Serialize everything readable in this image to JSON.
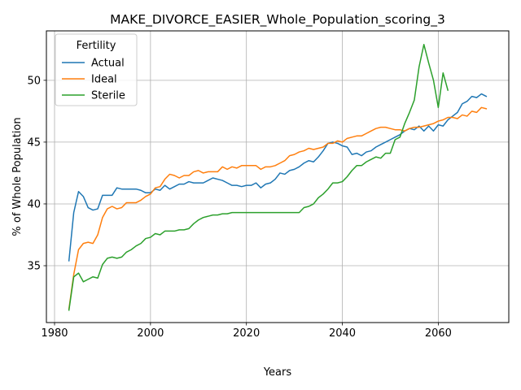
{
  "chart_data": {
    "type": "line",
    "title": "MAKE_DIVORCE_EASIER_Whole_Population_scoring_3",
    "xlabel": "Years",
    "ylabel": "% of Whole Population",
    "xlim": [
      1978.3,
      2074.7
    ],
    "ylim": [
      30.4,
      54.0
    ],
    "xticks": [
      1980,
      2000,
      2020,
      2040,
      2060
    ],
    "yticks": [
      35,
      40,
      45,
      50
    ],
    "grid": true,
    "legend": {
      "title": "Fertility",
      "position": "top-left"
    },
    "series": [
      {
        "name": "Actual",
        "color": "#1f77b4",
        "x": [
          1983,
          1984,
          1985,
          1986,
          1987,
          1988,
          1989,
          1990,
          1991,
          1992,
          1993,
          1994,
          1995,
          1996,
          1997,
          1998,
          1999,
          2000,
          2001,
          2002,
          2003,
          2004,
          2005,
          2006,
          2007,
          2008,
          2009,
          2010,
          2011,
          2012,
          2013,
          2014,
          2015,
          2016,
          2017,
          2018,
          2019,
          2020,
          2021,
          2022,
          2023,
          2024,
          2025,
          2026,
          2027,
          2028,
          2029,
          2030,
          2031,
          2032,
          2033,
          2034,
          2035,
          2036,
          2037,
          2038,
          2039,
          2040,
          2041,
          2042,
          2043,
          2044,
          2045,
          2046,
          2047,
          2048,
          2049,
          2050,
          2051,
          2052,
          2053,
          2054,
          2055,
          2056,
          2057,
          2058,
          2059,
          2060,
          2061,
          2062,
          2063,
          2064,
          2065,
          2066,
          2067,
          2068,
          2069,
          2070
        ],
        "y": [
          35.4,
          39.3,
          41.0,
          40.6,
          39.7,
          39.5,
          39.6,
          40.7,
          40.7,
          40.7,
          41.3,
          41.2,
          41.2,
          41.2,
          41.2,
          41.1,
          40.9,
          40.9,
          41.2,
          41.1,
          41.5,
          41.2,
          41.4,
          41.6,
          41.6,
          41.8,
          41.7,
          41.7,
          41.7,
          41.9,
          42.1,
          42.0,
          41.9,
          41.7,
          41.5,
          41.5,
          41.4,
          41.5,
          41.5,
          41.7,
          41.3,
          41.6,
          41.7,
          42.0,
          42.5,
          42.4,
          42.7,
          42.8,
          43.0,
          43.3,
          43.5,
          43.4,
          43.8,
          44.3,
          44.9,
          45.0,
          44.9,
          44.7,
          44.6,
          44.0,
          44.1,
          43.9,
          44.2,
          44.3,
          44.6,
          44.8,
          45.0,
          45.2,
          45.4,
          45.6,
          45.9,
          46.1,
          46.0,
          46.3,
          45.9,
          46.3,
          45.9,
          46.4,
          46.3,
          46.8,
          47.1,
          47.4,
          48.1,
          48.3,
          48.7,
          48.6,
          48.9,
          48.7
        ]
      },
      {
        "name": "Ideal",
        "color": "#ff7f0e",
        "x": [
          1983,
          1984,
          1985,
          1986,
          1987,
          1988,
          1989,
          1990,
          1991,
          1992,
          1993,
          1994,
          1995,
          1996,
          1997,
          1998,
          1999,
          2000,
          2001,
          2002,
          2003,
          2004,
          2005,
          2006,
          2007,
          2008,
          2009,
          2010,
          2011,
          2012,
          2013,
          2014,
          2015,
          2016,
          2017,
          2018,
          2019,
          2020,
          2021,
          2022,
          2023,
          2024,
          2025,
          2026,
          2027,
          2028,
          2029,
          2030,
          2031,
          2032,
          2033,
          2034,
          2035,
          2036,
          2037,
          2038,
          2039,
          2040,
          2041,
          2042,
          2043,
          2044,
          2045,
          2046,
          2047,
          2048,
          2049,
          2050,
          2051,
          2052,
          2053,
          2054,
          2055,
          2056,
          2057,
          2058,
          2059,
          2060,
          2061,
          2062,
          2063,
          2064,
          2065,
          2066,
          2067,
          2068,
          2069,
          2070
        ],
        "y": [
          31.5,
          34.3,
          36.3,
          36.8,
          36.9,
          36.8,
          37.5,
          38.9,
          39.6,
          39.8,
          39.6,
          39.7,
          40.1,
          40.1,
          40.1,
          40.3,
          40.6,
          40.8,
          41.3,
          41.4,
          42.0,
          42.4,
          42.3,
          42.1,
          42.3,
          42.3,
          42.6,
          42.7,
          42.5,
          42.6,
          42.6,
          42.6,
          43.0,
          42.8,
          43.0,
          42.9,
          43.1,
          43.1,
          43.1,
          43.1,
          42.8,
          43.0,
          43.0,
          43.1,
          43.3,
          43.5,
          43.9,
          44.0,
          44.2,
          44.3,
          44.5,
          44.4,
          44.5,
          44.6,
          44.9,
          44.9,
          45.1,
          45.0,
          45.3,
          45.4,
          45.5,
          45.5,
          45.7,
          45.9,
          46.1,
          46.2,
          46.2,
          46.1,
          46.0,
          46.0,
          45.9,
          46.1,
          46.2,
          46.2,
          46.3,
          46.4,
          46.5,
          46.7,
          46.8,
          47.0,
          47.0,
          46.9,
          47.2,
          47.1,
          47.5,
          47.4,
          47.8,
          47.7
        ]
      },
      {
        "name": "Sterile",
        "color": "#2ca02c",
        "x": [
          1983,
          1984,
          1985,
          1986,
          1987,
          1988,
          1989,
          1990,
          1991,
          1992,
          1993,
          1994,
          1995,
          1996,
          1997,
          1998,
          1999,
          2000,
          2001,
          2002,
          2003,
          2004,
          2005,
          2006,
          2007,
          2008,
          2009,
          2010,
          2011,
          2012,
          2013,
          2014,
          2015,
          2016,
          2017,
          2018,
          2019,
          2020,
          2021,
          2022,
          2023,
          2024,
          2025,
          2026,
          2027,
          2028,
          2029,
          2030,
          2031,
          2032,
          2033,
          2034,
          2035,
          2036,
          2037,
          2038,
          2039,
          2040,
          2041,
          2042,
          2043,
          2044,
          2045,
          2046,
          2047,
          2048,
          2049,
          2050,
          2051,
          2052,
          2053,
          2054,
          2055,
          2056,
          2057,
          2058,
          2059,
          2060,
          2061,
          2062
        ],
        "y": [
          31.4,
          34.1,
          34.4,
          33.7,
          33.9,
          34.1,
          34.0,
          35.1,
          35.6,
          35.7,
          35.6,
          35.7,
          36.1,
          36.3,
          36.6,
          36.8,
          37.2,
          37.3,
          37.6,
          37.5,
          37.8,
          37.8,
          37.8,
          37.9,
          37.9,
          38.0,
          38.4,
          38.7,
          38.9,
          39.0,
          39.1,
          39.1,
          39.2,
          39.2,
          39.3,
          39.3,
          39.3,
          39.3,
          39.3,
          39.3,
          39.3,
          39.3,
          39.3,
          39.3,
          39.3,
          39.3,
          39.3,
          39.3,
          39.3,
          39.7,
          39.8,
          40.0,
          40.5,
          40.8,
          41.2,
          41.7,
          41.7,
          41.8,
          42.2,
          42.7,
          43.1,
          43.1,
          43.4,
          43.6,
          43.8,
          43.7,
          44.1,
          44.1,
          45.2,
          45.4,
          46.5,
          47.4,
          48.4,
          51.1,
          52.9,
          51.4,
          50.0,
          47.8,
          50.6,
          49.2
        ]
      }
    ]
  }
}
